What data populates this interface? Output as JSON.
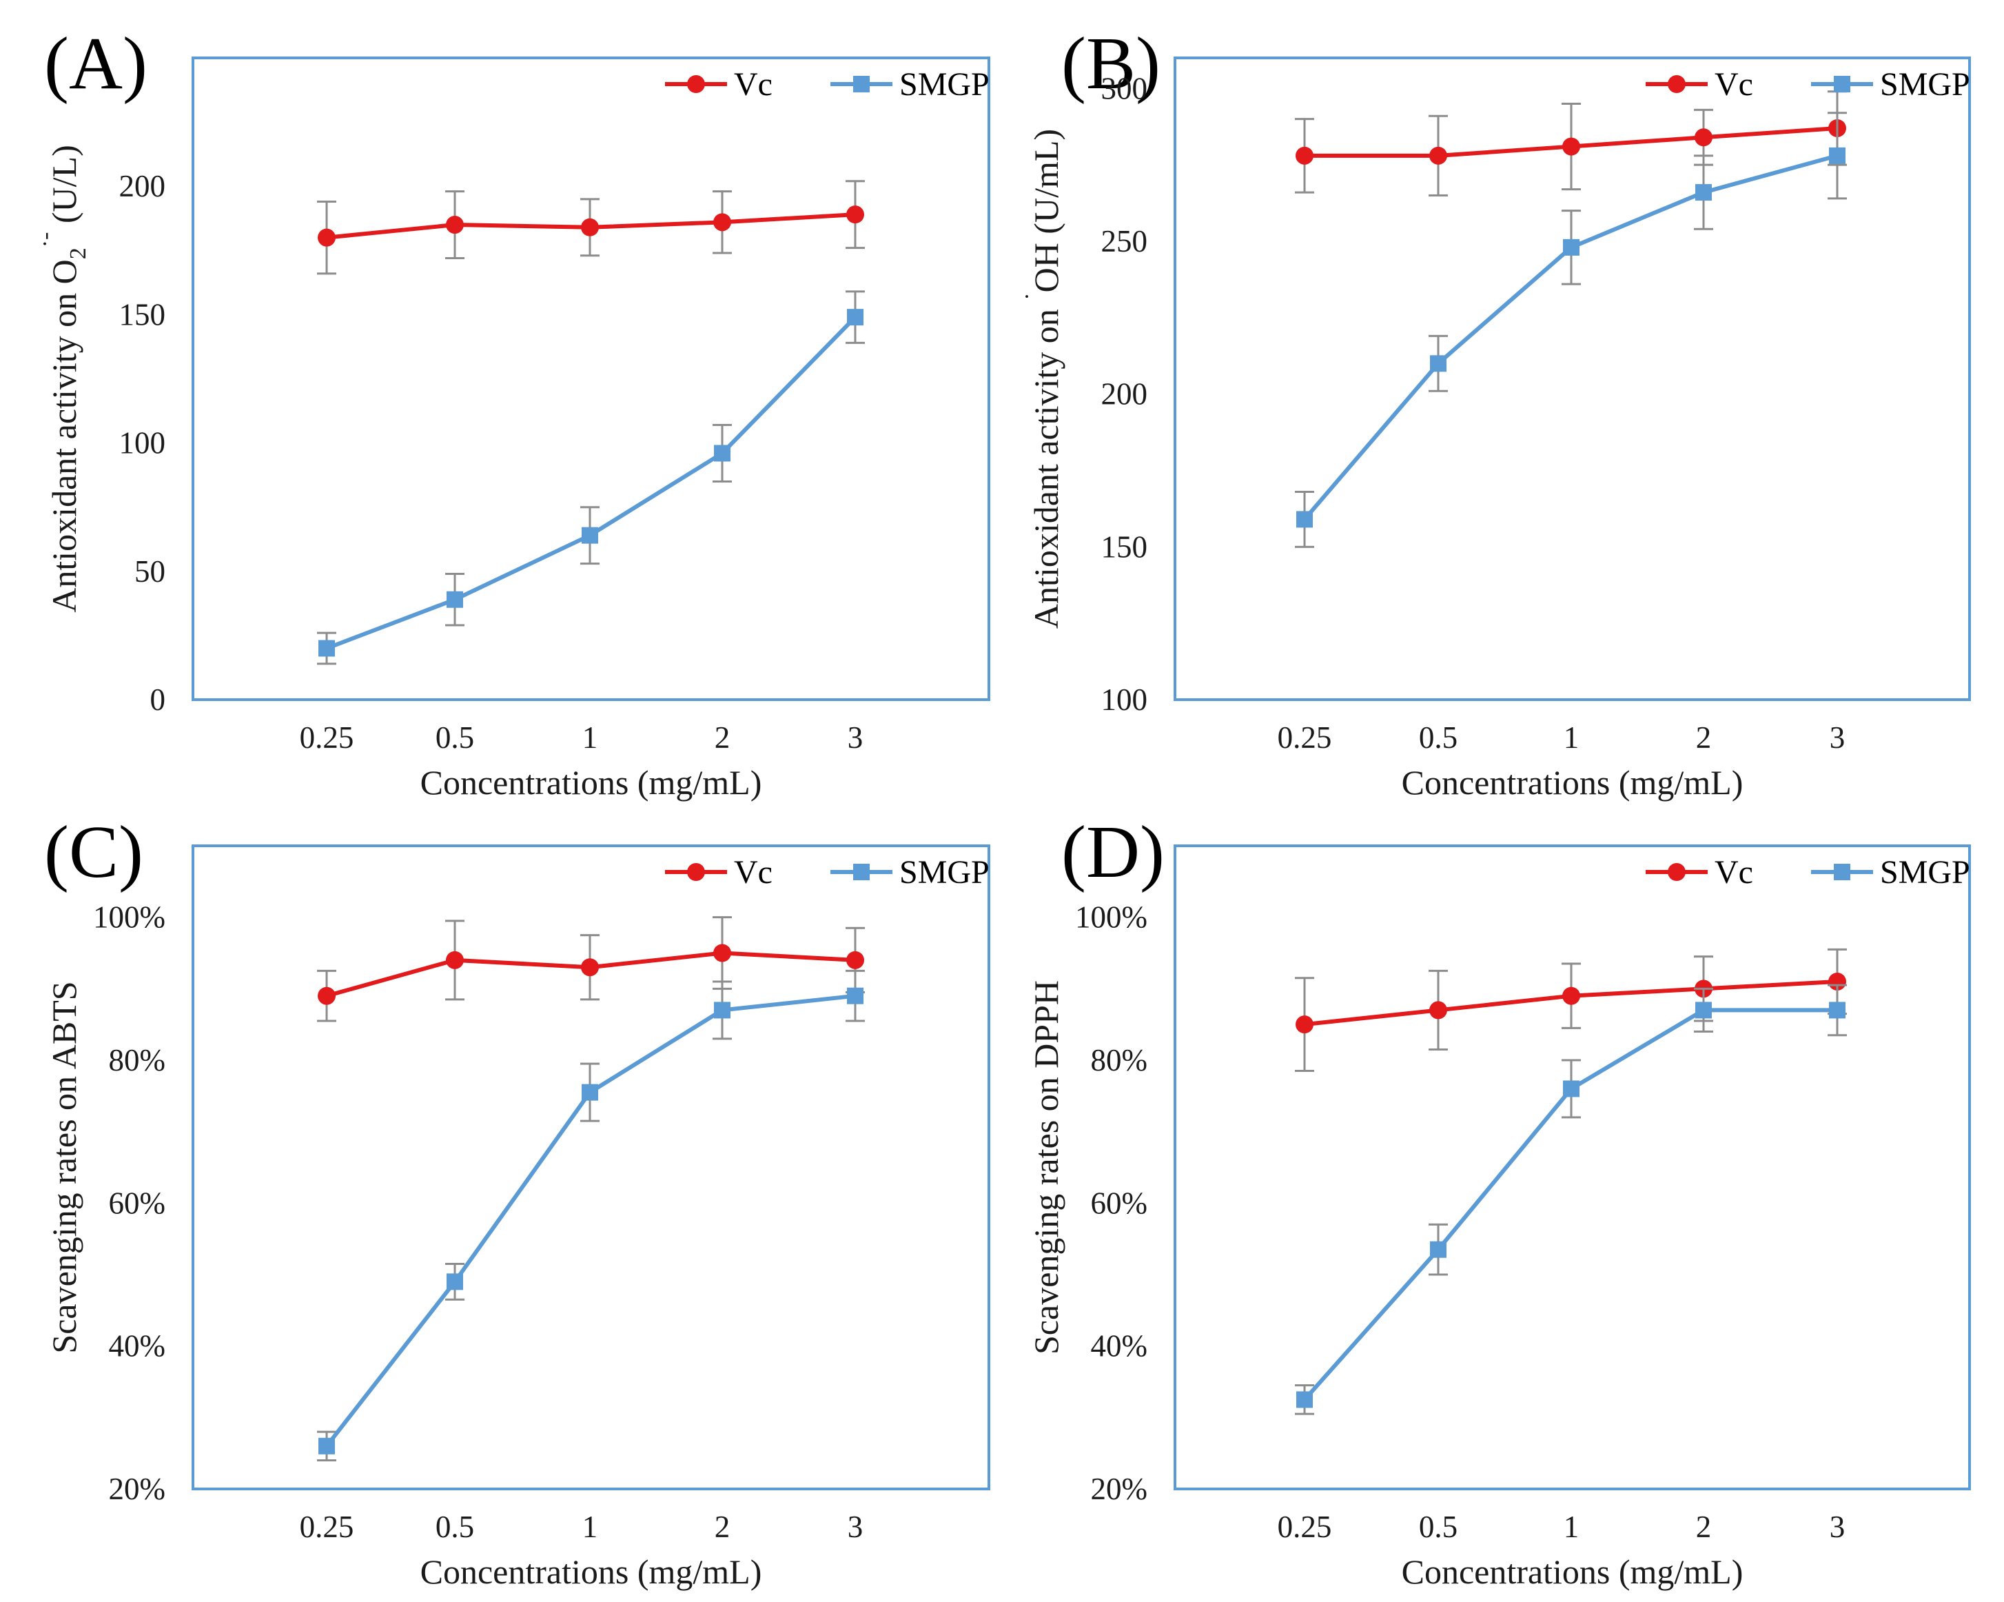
{
  "chart_data": [
    {
      "panel": "(A)",
      "type": "line",
      "categories": [
        "0.25",
        "0.5",
        "1",
        "2",
        "3"
      ],
      "xlabel": "Concentrations (mg/mL)",
      "ylabel": "Antioxidant activity on O2·- (U/L)",
      "ylabel_parts": {
        "pre": "Antioxidant activity on O",
        "sub": "2",
        "sup": "·-",
        "post": " (U/L)"
      },
      "ylim": [
        0,
        250
      ],
      "yticks": [
        0,
        50,
        100,
        150,
        200
      ],
      "ytick_labels": [
        "0",
        "50",
        "100",
        "150",
        "200"
      ],
      "series": [
        {
          "name": "Vc",
          "marker": "circle",
          "values": [
            180,
            185,
            184,
            186,
            189
          ],
          "errors": [
            14,
            13,
            11,
            12,
            13
          ]
        },
        {
          "name": "SMGP",
          "marker": "square",
          "values": [
            20,
            39,
            64,
            96,
            149
          ],
          "errors": [
            6,
            10,
            11,
            11,
            10
          ]
        }
      ],
      "legend_position": "top-right"
    },
    {
      "panel": "(B)",
      "type": "line",
      "categories": [
        "0.25",
        "0.5",
        "1",
        "2",
        "3"
      ],
      "xlabel": "Concentrations (mg/mL)",
      "ylabel": "Antioxidant activity on ·OH (U/mL)",
      "ylabel_parts": {
        "pre": "Antioxidant activity on ",
        "sup": "·",
        "post": "OH (U/mL)"
      },
      "ylim": [
        100,
        310
      ],
      "yticks": [
        100,
        150,
        200,
        250,
        300
      ],
      "ytick_labels": [
        "100",
        "150",
        "200",
        "250",
        "300"
      ],
      "series": [
        {
          "name": "Vc",
          "marker": "circle",
          "values": [
            278,
            278,
            281,
            284,
            287
          ],
          "errors": [
            12,
            13,
            14,
            9,
            12
          ]
        },
        {
          "name": "SMGP",
          "marker": "square",
          "values": [
            159,
            210,
            248,
            266,
            278
          ],
          "errors": [
            9,
            9,
            12,
            12,
            14
          ]
        }
      ],
      "legend_position": "top-right"
    },
    {
      "panel": "(C)",
      "type": "line",
      "categories": [
        "0.25",
        "0.5",
        "1",
        "2",
        "3"
      ],
      "xlabel": "Concentrations (mg/mL)",
      "ylabel": "Scavenging rates on ABTS",
      "ylim": [
        20,
        110
      ],
      "yticks": [
        20,
        40,
        60,
        80,
        100
      ],
      "ytick_labels": [
        "20%",
        "40%",
        "60%",
        "80%",
        "100%"
      ],
      "series": [
        {
          "name": "Vc",
          "marker": "circle",
          "values": [
            89,
            94,
            93,
            95,
            94
          ],
          "errors": [
            3.5,
            5.5,
            4.5,
            5,
            4.5
          ]
        },
        {
          "name": "SMGP",
          "marker": "square",
          "values": [
            26,
            49,
            75.5,
            87,
            89
          ],
          "errors": [
            2,
            2.5,
            4,
            4,
            3.5
          ]
        }
      ],
      "legend_position": "top-right"
    },
    {
      "panel": "(D)",
      "type": "line",
      "categories": [
        "0.25",
        "0.5",
        "1",
        "2",
        "3"
      ],
      "xlabel": "Concentrations (mg/mL)",
      "ylabel": "Scavenging rates on DPPH",
      "ylim": [
        20,
        110
      ],
      "yticks": [
        20,
        40,
        60,
        80,
        100
      ],
      "ytick_labels": [
        "20%",
        "40%",
        "60%",
        "80%",
        "100%"
      ],
      "series": [
        {
          "name": "Vc",
          "marker": "circle",
          "values": [
            85,
            87,
            89,
            90,
            91
          ],
          "errors": [
            6.5,
            5.5,
            4.5,
            4.5,
            4.5
          ]
        },
        {
          "name": "SMGP",
          "marker": "square",
          "values": [
            32.5,
            53.5,
            76,
            87,
            87
          ],
          "errors": [
            2,
            3.5,
            4,
            3,
            3.5
          ]
        }
      ],
      "legend_position": "top-right"
    }
  ],
  "colors": {
    "vc": "#e31a1c",
    "smgp": "#5b9bd5",
    "frame": "#5b9bd5",
    "error_bar": "#8c8c8c"
  }
}
